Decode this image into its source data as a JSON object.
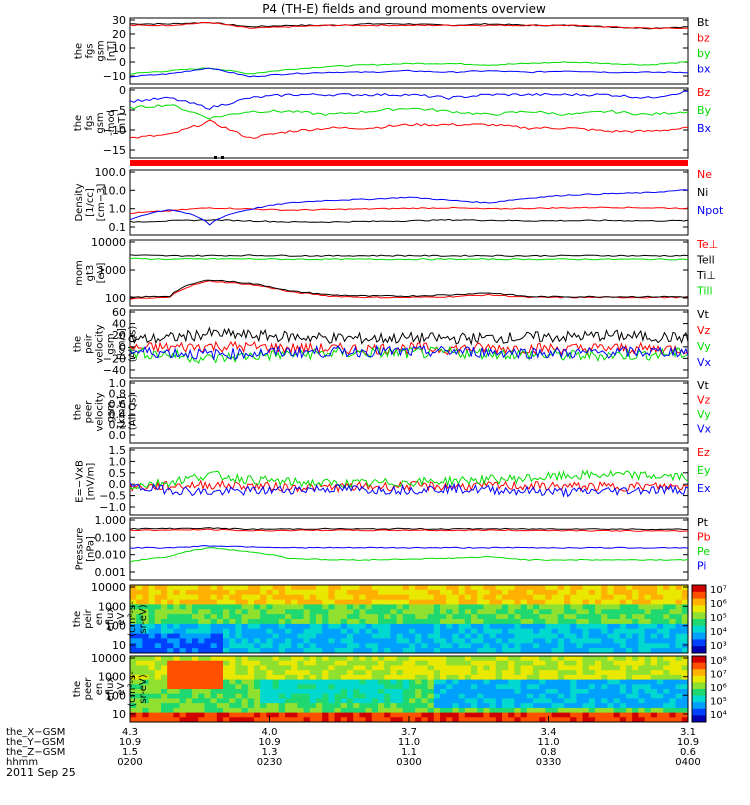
{
  "title": "P4 (TH-E) fields and ground moments overview",
  "colors": {
    "black": "#000000",
    "red": "#ff0000",
    "green": "#00dd00",
    "blue": "#0000ff",
    "panel_bg": "#ffffff"
  },
  "chart_data": [
    {
      "type": "line",
      "ylabel": [
        "the",
        "fgs",
        "gsm",
        "[nT]"
      ],
      "yticks": [
        "30",
        "20",
        "10",
        "0",
        "−10"
      ],
      "ylim": [
        -13,
        32
      ],
      "legend": [
        "Bt",
        "bz",
        "by",
        "bx"
      ],
      "series": [
        {
          "name": "Bt",
          "values": [
            28,
            28,
            29,
            26,
            27,
            27,
            28,
            28,
            27,
            28,
            27,
            27,
            26,
            25,
            26
          ]
        },
        {
          "name": "bz",
          "values": [
            27,
            27,
            29,
            25,
            26,
            27,
            27,
            27,
            27,
            27,
            27,
            27,
            26,
            25,
            25
          ]
        },
        {
          "name": "by",
          "values": [
            -6,
            -4,
            -2,
            -6,
            -3,
            -1,
            0,
            1,
            1,
            0,
            1,
            2,
            1,
            0,
            2
          ]
        },
        {
          "name": "bx",
          "values": [
            -8,
            -6,
            -2,
            -8,
            -6,
            -5,
            -5,
            -4,
            -5,
            -4,
            -5,
            -4,
            -5,
            -5,
            -5
          ]
        }
      ]
    },
    {
      "type": "line",
      "ylabel": [
        "the",
        "fgs",
        "gsm",
        "-mod",
        "[nT]"
      ],
      "yticks": [
        "0",
        "−5",
        "−10",
        "−15"
      ],
      "ylim": [
        -18,
        3
      ],
      "legend": [
        "Bz",
        "By",
        "Bx"
      ],
      "series": [
        {
          "name": "Bz",
          "values": [
            -12,
            -11,
            -7,
            -12,
            -10,
            -9,
            -9,
            -8,
            -8,
            -8,
            -9,
            -9,
            -10,
            -10,
            -9
          ]
        },
        {
          "name": "By",
          "values": [
            -3,
            -2,
            -6,
            -4,
            -4,
            -5,
            -4,
            -3,
            -4,
            -5,
            -4,
            -5,
            -4,
            -5,
            -4
          ]
        },
        {
          "name": "Bx",
          "values": [
            -1,
            0,
            -3,
            0,
            1,
            1,
            1,
            1,
            0,
            1,
            1,
            1,
            1,
            0,
            2
          ]
        }
      ]
    },
    {
      "type": "line",
      "scale": "log",
      "ylabel": [
        "Density",
        "[1/cc]",
        "[cm−3]"
      ],
      "yticks": [
        "100.0",
        "10.0",
        "1.0",
        "0.1"
      ],
      "ylim": [
        0.1,
        100
      ],
      "legend": [
        "Ne",
        "Ni",
        "Npot"
      ],
      "series": [
        {
          "name": "Ne",
          "values": [
            1.0,
            1.3,
            1.8,
            1.6,
            1.4,
            1.5,
            1.6,
            1.7,
            1.8,
            1.6,
            1.7,
            1.8,
            1.9,
            1.8,
            1.7
          ]
        },
        {
          "name": "Ni",
          "values": [
            0.4,
            0.45,
            0.5,
            0.45,
            0.4,
            0.4,
            0.42,
            0.45,
            0.5,
            0.48,
            0.45,
            0.46,
            0.47,
            0.45,
            0.46
          ]
        },
        {
          "name": "Npot",
          "values": [
            0.5,
            1.5,
            0.3,
            1.5,
            3.0,
            4.0,
            4.5,
            5.5,
            4.0,
            3.0,
            5.0,
            7.0,
            8.0,
            9.0,
            12.0
          ]
        }
      ]
    },
    {
      "type": "line",
      "scale": "log",
      "ylabel": [
        "mom",
        "gt3",
        "[eV]"
      ],
      "yticks": [
        "10000",
        "1000",
        "100"
      ],
      "ylim": [
        30,
        20000
      ],
      "legend": [
        "Te⊥",
        "Tell",
        "Ti⊥",
        "Till"
      ],
      "series": [
        {
          "name": "Te⊥",
          "values": [
            60,
            70,
            350,
            250,
            120,
            80,
            70,
            70,
            75,
            90,
            70,
            70,
            70,
            70,
            70
          ]
        },
        {
          "name": "Tell",
          "values": [
            70,
            80,
            400,
            280,
            130,
            90,
            80,
            80,
            90,
            110,
            75,
            75,
            75,
            75,
            75
          ]
        },
        {
          "name": "Ti⊥",
          "values": [
            4500,
            4200,
            4300,
            4400,
            4300,
            4200,
            4300,
            4300,
            4200,
            4300,
            4200,
            4300,
            4300,
            4200,
            4300
          ]
        },
        {
          "name": "Till",
          "values": [
            3200,
            3000,
            3100,
            3100,
            3000,
            3000,
            3000,
            3000,
            3000,
            3000,
            3000,
            3000,
            3000,
            3000,
            3000
          ]
        }
      ]
    },
    {
      "type": "line",
      "ylabel": [
        "the",
        "peir",
        "velocity",
        "gsm",
        "[km/s]",
        "(All Qs)"
      ],
      "yticks": [
        "60",
        "40",
        "20",
        "0",
        "−20",
        "−40"
      ],
      "ylim": [
        -45,
        62
      ],
      "legend": [
        "Vt",
        "Vz",
        "Vy",
        "Vx"
      ],
      "series": [
        {
          "name": "Vt",
          "values": [
            15,
            18,
            25,
            22,
            20,
            18,
            17,
            18,
            17,
            18,
            19,
            20,
            22,
            20,
            18
          ]
        },
        {
          "name": "Vz",
          "values": [
            2,
            3,
            5,
            4,
            2,
            1,
            1,
            2,
            1,
            2,
            2,
            1,
            2,
            1,
            1
          ]
        },
        {
          "name": "Vy",
          "values": [
            -5,
            -8,
            -15,
            -10,
            -8,
            -6,
            -5,
            -6,
            -5,
            -6,
            -8,
            -10,
            -9,
            -8,
            -6
          ]
        },
        {
          "name": "Vx",
          "values": [
            -3,
            -5,
            -8,
            -6,
            -4,
            -4,
            -3,
            -4,
            -3,
            -4,
            -5,
            -6,
            -5,
            -4,
            -3
          ]
        }
      ]
    },
    {
      "type": "line",
      "ylabel": [
        "the",
        "peer",
        "velocity",
        "gsm",
        "[km/s]",
        "(All Qs)"
      ],
      "yticks": [
        "1.0",
        "0.8",
        "0.6",
        "0.4",
        "0.2",
        "0.0"
      ],
      "ylim": [
        0,
        1
      ],
      "legend": [
        "Vt",
        "Vz",
        "Vy",
        "Vx"
      ],
      "series": []
    },
    {
      "type": "line",
      "ylabel": [
        "E=−VxB",
        "[mV/m]"
      ],
      "yticks": [
        "1.5",
        "1.0",
        "0.5",
        "0.0",
        "−0.5",
        "−1.0"
      ],
      "ylim": [
        -1.1,
        1.55
      ],
      "legend": [
        "Ez",
        "Ey",
        "Ex"
      ],
      "series": [
        {
          "name": "Ez",
          "values": [
            0.0,
            0.05,
            0.1,
            0.05,
            0.0,
            0.0,
            0.02,
            0.05,
            0.03,
            0.05,
            0.05,
            0.03,
            0.02,
            0.03,
            0.02
          ]
        },
        {
          "name": "Ey",
          "values": [
            0.05,
            0.2,
            0.5,
            0.3,
            0.2,
            0.15,
            0.15,
            0.2,
            0.25,
            0.3,
            0.35,
            0.45,
            0.5,
            0.45,
            0.4
          ]
        },
        {
          "name": "Ex",
          "values": [
            0.0,
            -0.1,
            -0.2,
            -0.15,
            -0.1,
            -0.05,
            -0.1,
            -0.1,
            -0.05,
            -0.1,
            -0.15,
            -0.2,
            -0.15,
            -0.1,
            -0.1
          ]
        }
      ]
    },
    {
      "type": "line",
      "scale": "log",
      "ylabel": [
        "Pressure",
        "[nPa]"
      ],
      "yticks": [
        "1.000",
        "0.100",
        "0.010",
        "0.001"
      ],
      "ylim": [
        0.001,
        1.2
      ],
      "legend": [
        "Pt",
        "Pb",
        "Pe",
        "Pi"
      ],
      "series": [
        {
          "name": "Pt",
          "values": [
            0.35,
            0.36,
            0.38,
            0.33,
            0.34,
            0.35,
            0.34,
            0.35,
            0.34,
            0.35,
            0.34,
            0.35,
            0.34,
            0.33,
            0.33
          ]
        },
        {
          "name": "Pb",
          "values": [
            0.3,
            0.3,
            0.32,
            0.28,
            0.29,
            0.3,
            0.29,
            0.3,
            0.29,
            0.3,
            0.29,
            0.29,
            0.28,
            0.27,
            0.27
          ]
        },
        {
          "name": "Pe",
          "values": [
            0.008,
            0.015,
            0.04,
            0.025,
            0.012,
            0.01,
            0.01,
            0.011,
            0.012,
            0.014,
            0.01,
            0.01,
            0.01,
            0.01,
            0.01
          ]
        },
        {
          "name": "Pi",
          "values": [
            0.04,
            0.04,
            0.05,
            0.045,
            0.04,
            0.04,
            0.04,
            0.04,
            0.04,
            0.04,
            0.04,
            0.04,
            0.04,
            0.04,
            0.04
          ]
        }
      ]
    },
    {
      "type": "heatmap",
      "ylabel": [
        "the",
        "peir",
        "en",
        "eflux",
        "eV",
        "(cm²-s-",
        "sr-eV)"
      ],
      "yticks": [
        "10000",
        "1000",
        "100",
        "10"
      ],
      "colorbar_ticks": [
        "10⁷",
        "10⁶",
        "10⁵",
        "10⁴",
        "10³"
      ]
    },
    {
      "type": "heatmap",
      "ylabel": [
        "the",
        "peer",
        "en",
        "eflux",
        "eV",
        "(cm²-s-",
        "sr-eV)"
      ],
      "yticks": [
        "10000",
        "1000",
        "100",
        "10"
      ],
      "colorbar_ticks": [
        "10⁸",
        "10⁷",
        "10⁶",
        "10⁵",
        "10⁴"
      ]
    }
  ],
  "xaxis": {
    "rows": [
      {
        "label": "the_X−GSM",
        "values": [
          "4.3",
          "4.0",
          "3.7",
          "3.4",
          "3.1"
        ]
      },
      {
        "label": "the_Y−GSM",
        "values": [
          "10.9",
          "10.9",
          "11.0",
          "11.0",
          "10.9"
        ]
      },
      {
        "label": "the_Z−GSM",
        "values": [
          "1.5",
          "1.3",
          "1.1",
          "0.8",
          "0.6"
        ]
      },
      {
        "label": "hhmm",
        "values": [
          "0200",
          "0230",
          "0300",
          "0330",
          "0400"
        ]
      }
    ],
    "date": "2011 Sep 25"
  }
}
